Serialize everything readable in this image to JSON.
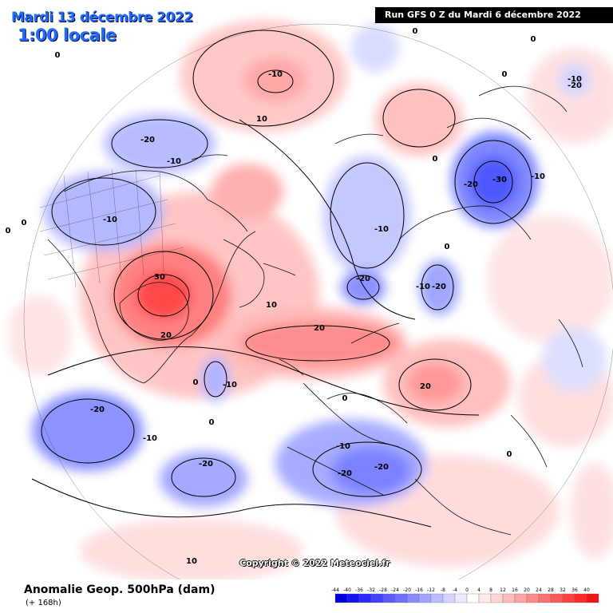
{
  "header": {
    "date": "Mardi 13 décembre 2022",
    "local_time": "1:00 locale",
    "run": "Run GFS 0 Z du Mardi 6 décembre 2022"
  },
  "footer": {
    "variable": "Anomalie Geop. 500hPa (dam)",
    "lead_time": "(+ 168h)",
    "copyright": "Copyright © 2022 Meteociel.fr"
  },
  "colors": {
    "negative_strong": "#2020ff",
    "negative_light": "#d0d4ff",
    "positive_light": "#ffd0d0",
    "positive_strong": "#ff2020"
  },
  "legend": {
    "ticks": [
      "-44",
      "-40",
      "-36",
      "-32",
      "-28",
      "-24",
      "-20",
      "-16",
      "-12",
      "-8",
      "-4",
      "0",
      "4",
      "8",
      "12",
      "16",
      "20",
      "24",
      "28",
      "32",
      "36",
      "40"
    ],
    "colors": [
      "#0000dd",
      "#1414ee",
      "#2a2aff",
      "#4040ff",
      "#5a5aff",
      "#7070ff",
      "#8a8aff",
      "#a4a4ff",
      "#bcbcff",
      "#d4d4ff",
      "#eaeaff",
      "#ffffff",
      "#ffeaea",
      "#ffd4d4",
      "#ffbcbc",
      "#ffa4a4",
      "#ff8a8a",
      "#ff7070",
      "#ff5a5a",
      "#ff4040",
      "#ff2a2a",
      "#ee1414"
    ]
  },
  "contour_labels": [
    {
      "id": "n20-alaska",
      "text": "-20"
    },
    {
      "id": "n10-alaska",
      "text": "-10"
    },
    {
      "id": "n10-canada",
      "text": "-10"
    },
    {
      "id": "p10-pacific",
      "text": "-10"
    },
    {
      "id": "p10-bering",
      "text": "10"
    },
    {
      "id": "n10-arctic",
      "text": "-10"
    },
    {
      "id": "n20-scandi",
      "text": "-20"
    },
    {
      "id": "n10-barents",
      "text": "-10"
    },
    {
      "id": "n20-barents",
      "text": "-20"
    },
    {
      "id": "n20-europe-a",
      "text": "-20"
    },
    {
      "id": "n20-europe-b",
      "text": "-20"
    },
    {
      "id": "n10-europe",
      "text": "-10"
    },
    {
      "id": "n20-atlantic-w",
      "text": "-20"
    },
    {
      "id": "n10-atlantic-w",
      "text": "-10"
    },
    {
      "id": "n20-atlantic-e",
      "text": "-20"
    },
    {
      "id": "n10-iceland",
      "text": "-10"
    },
    {
      "id": "p30-greenland",
      "text": "30"
    },
    {
      "id": "p20-greenland",
      "text": "20"
    },
    {
      "id": "p10-greenland",
      "text": "10"
    },
    {
      "id": "p20-siberia",
      "text": "20"
    },
    {
      "id": "p20-central",
      "text": "20"
    },
    {
      "id": "n30-east",
      "text": "-30"
    },
    {
      "id": "n20-east",
      "text": "-20"
    },
    {
      "id": "n10-east",
      "text": "-10"
    },
    {
      "id": "n10-topright",
      "text": "-10"
    },
    {
      "id": "n20-topright",
      "text": "-20"
    },
    {
      "id": "p10-bottom",
      "text": "10"
    },
    {
      "id": "z-1",
      "text": "0"
    },
    {
      "id": "z-2",
      "text": "0"
    },
    {
      "id": "z-3",
      "text": "0"
    },
    {
      "id": "z-4",
      "text": "0"
    },
    {
      "id": "z-5",
      "text": "0"
    },
    {
      "id": "z-6",
      "text": "0"
    },
    {
      "id": "z-7",
      "text": "0"
    },
    {
      "id": "z-8",
      "text": "0"
    },
    {
      "id": "z-9",
      "text": "0"
    },
    {
      "id": "z-10",
      "text": "0"
    },
    {
      "id": "z-11",
      "text": "0"
    },
    {
      "id": "z-12",
      "text": "0"
    }
  ]
}
